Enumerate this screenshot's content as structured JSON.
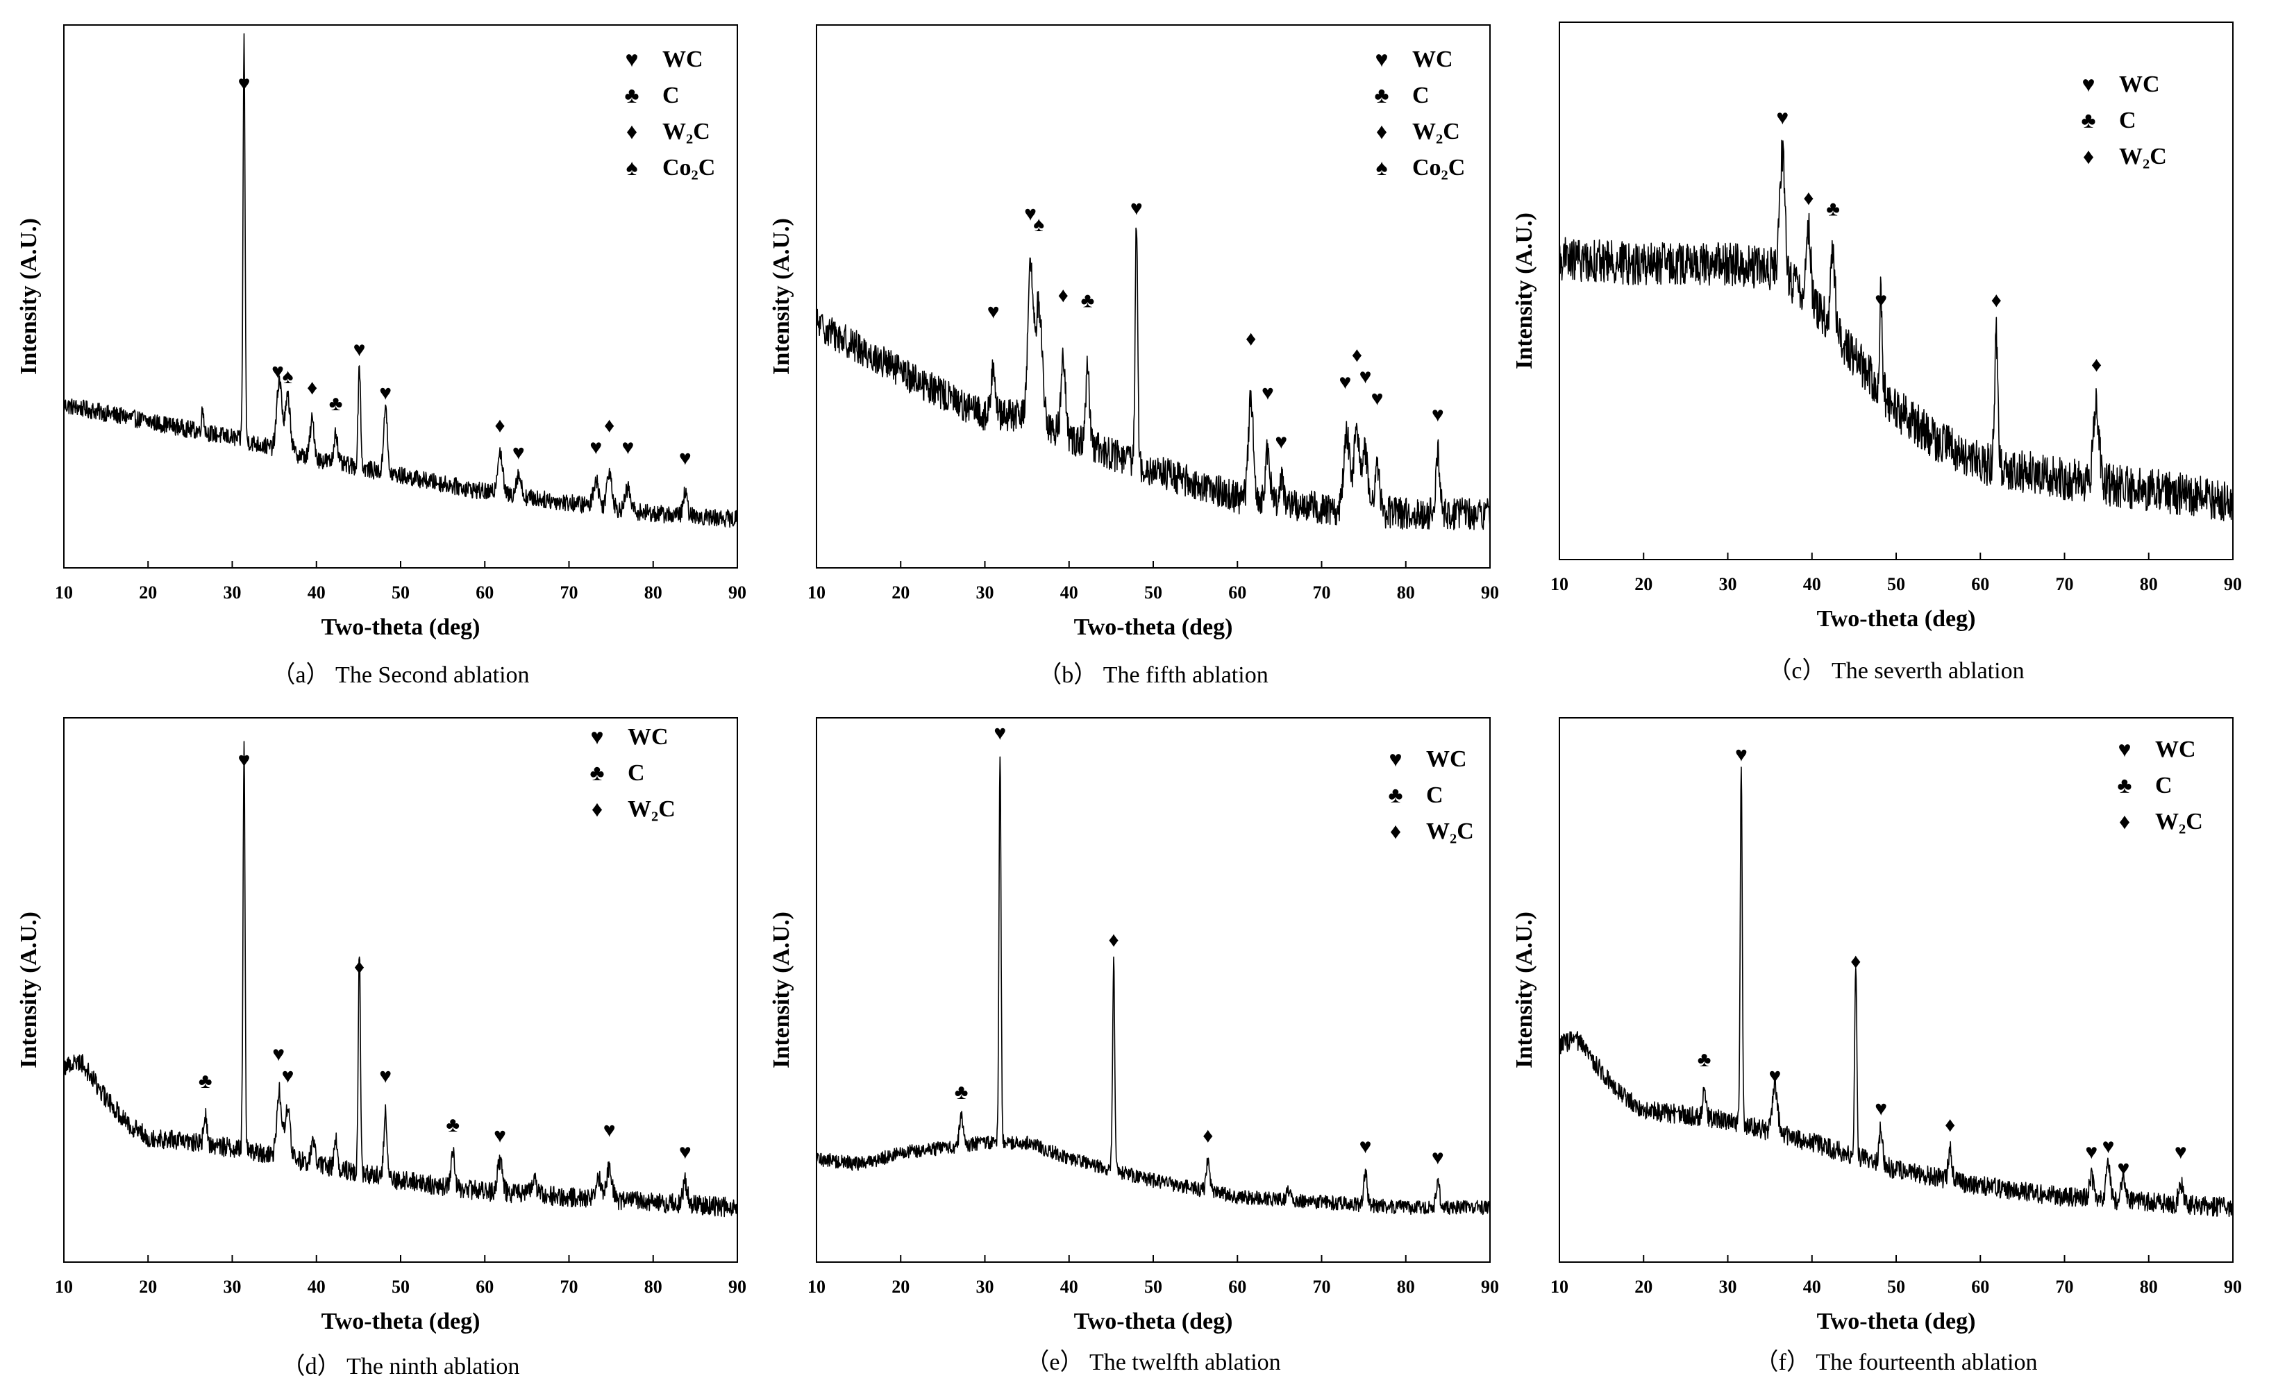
{
  "figure": {
    "captions": [
      "（a） The Second ablation",
      "（b） The fifth ablation",
      "（c） The severth ablation",
      "（d） The ninth ablation",
      "（e） The twelfth ablation",
      "（f） The fourteenth ablation"
    ]
  },
  "colors": {
    "line": "#000000",
    "background": "#ffffff"
  },
  "chart_data": [
    {
      "type": "line",
      "title": "（a） The Second ablation",
      "xlabel": "Two-theta (deg)",
      "ylabel": "Intensity (A.U.)",
      "xlim": [
        10,
        90
      ],
      "ylim": [
        0,
        100
      ],
      "xticks": [
        10,
        20,
        30,
        40,
        50,
        60,
        70,
        80,
        90
      ],
      "baseline": [
        [
          10,
          30
        ],
        [
          20,
          27
        ],
        [
          30,
          24
        ],
        [
          40,
          20
        ],
        [
          50,
          17
        ],
        [
          60,
          14
        ],
        [
          70,
          12
        ],
        [
          80,
          10
        ],
        [
          90,
          9
        ]
      ],
      "noise": 1.6,
      "peaks": [
        {
          "x": 26.5,
          "y": 4,
          "w": 0.15
        },
        {
          "x": 31.4,
          "y": 74,
          "w": 0.12
        },
        {
          "x": 35.6,
          "y": 13,
          "w": 0.3
        },
        {
          "x": 36.6,
          "y": 10,
          "w": 0.3
        },
        {
          "x": 39.5,
          "y": 7,
          "w": 0.25
        },
        {
          "x": 42.3,
          "y": 6,
          "w": 0.2
        },
        {
          "x": 45.1,
          "y": 19,
          "w": 0.15
        },
        {
          "x": 48.2,
          "y": 13,
          "w": 0.2
        },
        {
          "x": 61.8,
          "y": 8,
          "w": 0.3
        },
        {
          "x": 64.0,
          "y": 4,
          "w": 0.3
        },
        {
          "x": 73.2,
          "y": 5,
          "w": 0.3
        },
        {
          "x": 74.8,
          "y": 7,
          "w": 0.3
        },
        {
          "x": 77.0,
          "y": 4,
          "w": 0.3
        },
        {
          "x": 83.8,
          "y": 4,
          "w": 0.25
        }
      ],
      "markers": [
        {
          "x": 31.4,
          "y": 88,
          "symbol": "♥"
        },
        {
          "x": 35.4,
          "y": 35,
          "symbol": "♥"
        },
        {
          "x": 36.6,
          "y": 34,
          "symbol": "♠"
        },
        {
          "x": 39.5,
          "y": 32,
          "symbol": "♦"
        },
        {
          "x": 42.3,
          "y": 29,
          "symbol": "♣"
        },
        {
          "x": 45.1,
          "y": 39,
          "symbol": "♥"
        },
        {
          "x": 48.2,
          "y": 31,
          "symbol": "♥"
        },
        {
          "x": 61.8,
          "y": 25,
          "symbol": "♦"
        },
        {
          "x": 64.0,
          "y": 20,
          "symbol": "♥"
        },
        {
          "x": 73.2,
          "y": 21,
          "symbol": "♥"
        },
        {
          "x": 74.8,
          "y": 25,
          "symbol": "♦"
        },
        {
          "x": 77.0,
          "y": 21,
          "symbol": "♥"
        },
        {
          "x": 83.8,
          "y": 19,
          "symbol": "♥"
        }
      ],
      "legend": [
        {
          "symbol": "♥",
          "label": "WC"
        },
        {
          "symbol": "♣",
          "label": "C"
        },
        {
          "symbol": "♦",
          "label": "W₂C"
        },
        {
          "symbol": "♠",
          "label": "Co₂C"
        }
      ]
    },
    {
      "type": "line",
      "title": "（b） The fifth ablation",
      "xlabel": "Two-theta (deg)",
      "ylabel": "Intensity (A.U.)",
      "xlim": [
        10,
        90
      ],
      "ylim": [
        0,
        100
      ],
      "xticks": [
        10,
        20,
        30,
        40,
        50,
        60,
        70,
        80,
        90
      ],
      "baseline": [
        [
          10,
          45
        ],
        [
          20,
          36
        ],
        [
          30,
          28
        ],
        [
          35,
          28
        ],
        [
          40,
          24
        ],
        [
          50,
          18
        ],
        [
          60,
          13
        ],
        [
          70,
          11
        ],
        [
          80,
          10
        ],
        [
          90,
          10
        ]
      ],
      "noise": 3.0,
      "peaks": [
        {
          "x": 31.0,
          "y": 10,
          "w": 0.25
        },
        {
          "x": 35.4,
          "y": 27,
          "w": 0.3
        },
        {
          "x": 36.4,
          "y": 22,
          "w": 0.4
        },
        {
          "x": 39.3,
          "y": 15,
          "w": 0.25
        },
        {
          "x": 42.2,
          "y": 15,
          "w": 0.2
        },
        {
          "x": 48.0,
          "y": 44,
          "w": 0.15
        },
        {
          "x": 61.6,
          "y": 18,
          "w": 0.3
        },
        {
          "x": 63.6,
          "y": 9,
          "w": 0.25
        },
        {
          "x": 65.2,
          "y": 5,
          "w": 0.25
        },
        {
          "x": 73.0,
          "y": 14,
          "w": 0.35
        },
        {
          "x": 74.2,
          "y": 15,
          "w": 0.35
        },
        {
          "x": 75.2,
          "y": 11,
          "w": 0.3
        },
        {
          "x": 76.6,
          "y": 9,
          "w": 0.3
        },
        {
          "x": 83.8,
          "y": 11,
          "w": 0.25
        }
      ],
      "markers": [
        {
          "x": 31.0,
          "y": 46,
          "symbol": "♥"
        },
        {
          "x": 35.4,
          "y": 64,
          "symbol": "♥"
        },
        {
          "x": 36.4,
          "y": 62,
          "symbol": "♠"
        },
        {
          "x": 39.3,
          "y": 49,
          "symbol": "♦"
        },
        {
          "x": 42.2,
          "y": 48,
          "symbol": "♣"
        },
        {
          "x": 48.0,
          "y": 65,
          "symbol": "♥"
        },
        {
          "x": 61.6,
          "y": 41,
          "symbol": "♦"
        },
        {
          "x": 63.6,
          "y": 31,
          "symbol": "♥"
        },
        {
          "x": 65.2,
          "y": 22,
          "symbol": "♥"
        },
        {
          "x": 72.8,
          "y": 33,
          "symbol": "♥"
        },
        {
          "x": 74.2,
          "y": 38,
          "symbol": "♦"
        },
        {
          "x": 75.2,
          "y": 34,
          "symbol": "♥"
        },
        {
          "x": 76.6,
          "y": 30,
          "symbol": "♥"
        },
        {
          "x": 83.8,
          "y": 27,
          "symbol": "♥"
        }
      ],
      "legend": [
        {
          "symbol": "♥",
          "label": "WC"
        },
        {
          "symbol": "♣",
          "label": "C"
        },
        {
          "symbol": "♦",
          "label": "W₂C"
        },
        {
          "symbol": "♠",
          "label": "Co₂C"
        }
      ]
    },
    {
      "type": "line",
      "title": "（c） The severth ablation",
      "xlabel": "Two-theta (deg)",
      "ylabel": "Intensity (A.U.)",
      "xlim": [
        10,
        90
      ],
      "ylim": [
        0,
        100
      ],
      "xticks": [
        10,
        20,
        30,
        40,
        50,
        60,
        70,
        80,
        90
      ],
      "baseline": [
        [
          10,
          56
        ],
        [
          20,
          55
        ],
        [
          30,
          55
        ],
        [
          36,
          54
        ],
        [
          40,
          48
        ],
        [
          45,
          38
        ],
        [
          50,
          28
        ],
        [
          55,
          22
        ],
        [
          60,
          18
        ],
        [
          70,
          15
        ],
        [
          80,
          13
        ],
        [
          90,
          11
        ]
      ],
      "noise": 4.0,
      "peaks": [
        {
          "x": 36.5,
          "y": 22,
          "w": 0.3
        },
        {
          "x": 39.6,
          "y": 14,
          "w": 0.25
        },
        {
          "x": 42.5,
          "y": 14,
          "w": 0.25
        },
        {
          "x": 48.2,
          "y": 18,
          "w": 0.15
        },
        {
          "x": 61.9,
          "y": 24,
          "w": 0.2
        },
        {
          "x": 73.8,
          "y": 14,
          "w": 0.35
        }
      ],
      "markers": [
        {
          "x": 36.5,
          "y": 81,
          "symbol": "♥"
        },
        {
          "x": 39.6,
          "y": 66,
          "symbol": "♦"
        },
        {
          "x": 42.5,
          "y": 64,
          "symbol": "♣"
        },
        {
          "x": 48.2,
          "y": 47,
          "symbol": "♥"
        },
        {
          "x": 61.9,
          "y": 47,
          "symbol": "♦"
        },
        {
          "x": 73.8,
          "y": 35,
          "symbol": "♦"
        }
      ],
      "legend": [
        {
          "symbol": "♥",
          "label": "WC"
        },
        {
          "symbol": "♣",
          "label": "C"
        },
        {
          "symbol": "♦",
          "label": "W₂C"
        }
      ]
    },
    {
      "type": "line",
      "title": "（d） The ninth ablation",
      "xlabel": "Two-theta (deg)",
      "ylabel": "Intensity (A.U.)",
      "xlim": [
        10,
        90
      ],
      "ylim": [
        0,
        100
      ],
      "xticks": [
        10,
        20,
        30,
        40,
        50,
        60,
        70,
        80,
        90
      ],
      "baseline": [
        [
          10,
          36
        ],
        [
          12,
          37
        ],
        [
          15,
          30
        ],
        [
          18,
          25
        ],
        [
          20,
          23
        ],
        [
          30,
          21
        ],
        [
          40,
          18
        ],
        [
          50,
          15
        ],
        [
          60,
          13
        ],
        [
          70,
          12
        ],
        [
          80,
          11
        ],
        [
          90,
          10
        ]
      ],
      "noise": 1.8,
      "peaks": [
        {
          "x": 26.8,
          "y": 5,
          "w": 0.2
        },
        {
          "x": 31.4,
          "y": 74,
          "w": 0.12
        },
        {
          "x": 35.6,
          "y": 12,
          "w": 0.3
        },
        {
          "x": 36.6,
          "y": 9,
          "w": 0.3
        },
        {
          "x": 39.6,
          "y": 4,
          "w": 0.25
        },
        {
          "x": 42.3,
          "y": 5,
          "w": 0.2
        },
        {
          "x": 45.1,
          "y": 41,
          "w": 0.13
        },
        {
          "x": 48.2,
          "y": 12,
          "w": 0.2
        },
        {
          "x": 56.2,
          "y": 7,
          "w": 0.2
        },
        {
          "x": 61.8,
          "y": 6,
          "w": 0.3
        },
        {
          "x": 65.8,
          "y": 3,
          "w": 0.25
        },
        {
          "x": 73.5,
          "y": 4,
          "w": 0.3
        },
        {
          "x": 74.8,
          "y": 6,
          "w": 0.3
        },
        {
          "x": 83.8,
          "y": 4,
          "w": 0.25
        }
      ],
      "markers": [
        {
          "x": 26.8,
          "y": 32,
          "symbol": "♣"
        },
        {
          "x": 31.4,
          "y": 91,
          "symbol": "♥"
        },
        {
          "x": 35.5,
          "y": 37,
          "symbol": "♥"
        },
        {
          "x": 36.6,
          "y": 33,
          "symbol": "♥"
        },
        {
          "x": 45.1,
          "y": 53,
          "symbol": "♦"
        },
        {
          "x": 48.2,
          "y": 33,
          "symbol": "♥"
        },
        {
          "x": 56.2,
          "y": 24,
          "symbol": "♣"
        },
        {
          "x": 61.8,
          "y": 22,
          "symbol": "♥"
        },
        {
          "x": 74.8,
          "y": 23,
          "symbol": "♥"
        },
        {
          "x": 83.8,
          "y": 19,
          "symbol": "♥"
        }
      ],
      "legend": [
        {
          "symbol": "♥",
          "label": "WC"
        },
        {
          "symbol": "♣",
          "label": "C"
        },
        {
          "symbol": "♦",
          "label": "W₂C"
        }
      ]
    },
    {
      "type": "line",
      "title": "（e） The twelfth ablation",
      "xlabel": "Two-theta (deg)",
      "ylabel": "Intensity (A.U.)",
      "xlim": [
        10,
        90
      ],
      "ylim": [
        0,
        100
      ],
      "xticks": [
        10,
        20,
        30,
        40,
        50,
        60,
        70,
        80,
        90
      ],
      "baseline": [
        [
          10,
          19
        ],
        [
          15,
          18
        ],
        [
          20,
          20
        ],
        [
          30,
          22
        ],
        [
          35,
          22
        ],
        [
          40,
          19
        ],
        [
          50,
          15
        ],
        [
          60,
          12
        ],
        [
          70,
          11
        ],
        [
          80,
          10
        ],
        [
          90,
          10
        ]
      ],
      "noise": 1.3,
      "peaks": [
        {
          "x": 27.2,
          "y": 6,
          "w": 0.2
        },
        {
          "x": 31.8,
          "y": 72,
          "w": 0.12
        },
        {
          "x": 45.3,
          "y": 38,
          "w": 0.13
        },
        {
          "x": 56.5,
          "y": 6,
          "w": 0.2
        },
        {
          "x": 66.0,
          "y": 2,
          "w": 0.2
        },
        {
          "x": 75.2,
          "y": 6,
          "w": 0.2
        },
        {
          "x": 83.8,
          "y": 5,
          "w": 0.2
        }
      ],
      "markers": [
        {
          "x": 27.2,
          "y": 30,
          "symbol": "♣"
        },
        {
          "x": 31.8,
          "y": 96,
          "symbol": "♥"
        },
        {
          "x": 45.3,
          "y": 58,
          "symbol": "♦"
        },
        {
          "x": 56.5,
          "y": 22,
          "symbol": "♦"
        },
        {
          "x": 75.2,
          "y": 20,
          "symbol": "♥"
        },
        {
          "x": 83.8,
          "y": 18,
          "symbol": "♥"
        }
      ],
      "legend": [
        {
          "symbol": "♥",
          "label": "WC"
        },
        {
          "symbol": "♣",
          "label": "C"
        },
        {
          "symbol": "♦",
          "label": "W₂C"
        }
      ]
    },
    {
      "type": "line",
      "title": "（f） The fourteenth ablation",
      "xlabel": "Two-theta (deg)",
      "ylabel": "Intensity (A.U.)",
      "xlim": [
        10,
        90
      ],
      "ylim": [
        0,
        100
      ],
      "xticks": [
        10,
        20,
        30,
        40,
        50,
        60,
        70,
        80,
        90
      ],
      "baseline": [
        [
          10,
          40
        ],
        [
          12,
          41
        ],
        [
          15,
          35
        ],
        [
          18,
          30
        ],
        [
          20,
          28
        ],
        [
          30,
          26
        ],
        [
          40,
          22
        ],
        [
          50,
          17
        ],
        [
          60,
          14
        ],
        [
          70,
          12
        ],
        [
          80,
          11
        ],
        [
          90,
          10
        ]
      ],
      "noise": 1.8,
      "peaks": [
        {
          "x": 27.2,
          "y": 5,
          "w": 0.2
        },
        {
          "x": 31.6,
          "y": 66,
          "w": 0.12
        },
        {
          "x": 35.6,
          "y": 9,
          "w": 0.3
        },
        {
          "x": 45.2,
          "y": 36,
          "w": 0.13
        },
        {
          "x": 48.2,
          "y": 7,
          "w": 0.2
        },
        {
          "x": 56.4,
          "y": 6,
          "w": 0.2
        },
        {
          "x": 73.2,
          "y": 4,
          "w": 0.25
        },
        {
          "x": 75.2,
          "y": 6,
          "w": 0.25
        },
        {
          "x": 77.0,
          "y": 4,
          "w": 0.25
        },
        {
          "x": 83.8,
          "y": 4,
          "w": 0.25
        }
      ],
      "markers": [
        {
          "x": 27.2,
          "y": 36,
          "symbol": "♣"
        },
        {
          "x": 31.6,
          "y": 92,
          "symbol": "♥"
        },
        {
          "x": 35.6,
          "y": 33,
          "symbol": "♥"
        },
        {
          "x": 45.2,
          "y": 54,
          "symbol": "♦"
        },
        {
          "x": 48.2,
          "y": 27,
          "symbol": "♥"
        },
        {
          "x": 56.4,
          "y": 24,
          "symbol": "♦"
        },
        {
          "x": 73.2,
          "y": 19,
          "symbol": "♥"
        },
        {
          "x": 75.2,
          "y": 20,
          "symbol": "♥"
        },
        {
          "x": 77.0,
          "y": 16,
          "symbol": "♥"
        },
        {
          "x": 83.8,
          "y": 19,
          "symbol": "♥"
        }
      ],
      "legend": [
        {
          "symbol": "♥",
          "label": "WC"
        },
        {
          "symbol": "♣",
          "label": "C"
        },
        {
          "symbol": "♦",
          "label": "W₂C"
        }
      ]
    }
  ]
}
